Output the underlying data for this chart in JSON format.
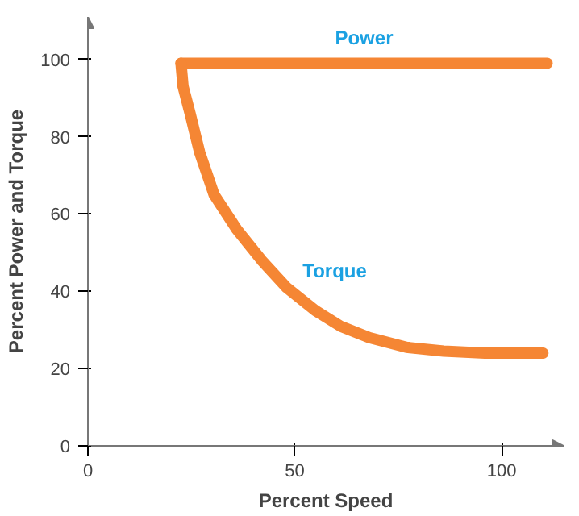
{
  "chart_data": {
    "type": "line",
    "xlabel": "Percent Speed",
    "ylabel": "Percent Power and Torque",
    "xlim": [
      0,
      115
    ],
    "ylim": [
      0,
      111
    ],
    "xticks": [
      0,
      50,
      100
    ],
    "yticks": [
      0,
      20,
      40,
      60,
      80,
      100
    ],
    "grid": false,
    "marker": "none",
    "line_style": "solid",
    "series": [
      {
        "name": "Power",
        "color": "#f58634",
        "x": [
          22.5,
          111
        ],
        "values": [
          99,
          99
        ]
      },
      {
        "name": "Torque",
        "color": "#f58634",
        "x": [
          22.5,
          23,
          24.7,
          27,
          30.5,
          36,
          42,
          48,
          55,
          61,
          68,
          77,
          86,
          96,
          110
        ],
        "values": [
          99,
          93,
          86,
          76,
          65,
          56,
          48,
          41,
          35,
          31,
          28,
          25.5,
          24.5,
          24,
          24
        ]
      }
    ]
  }
}
